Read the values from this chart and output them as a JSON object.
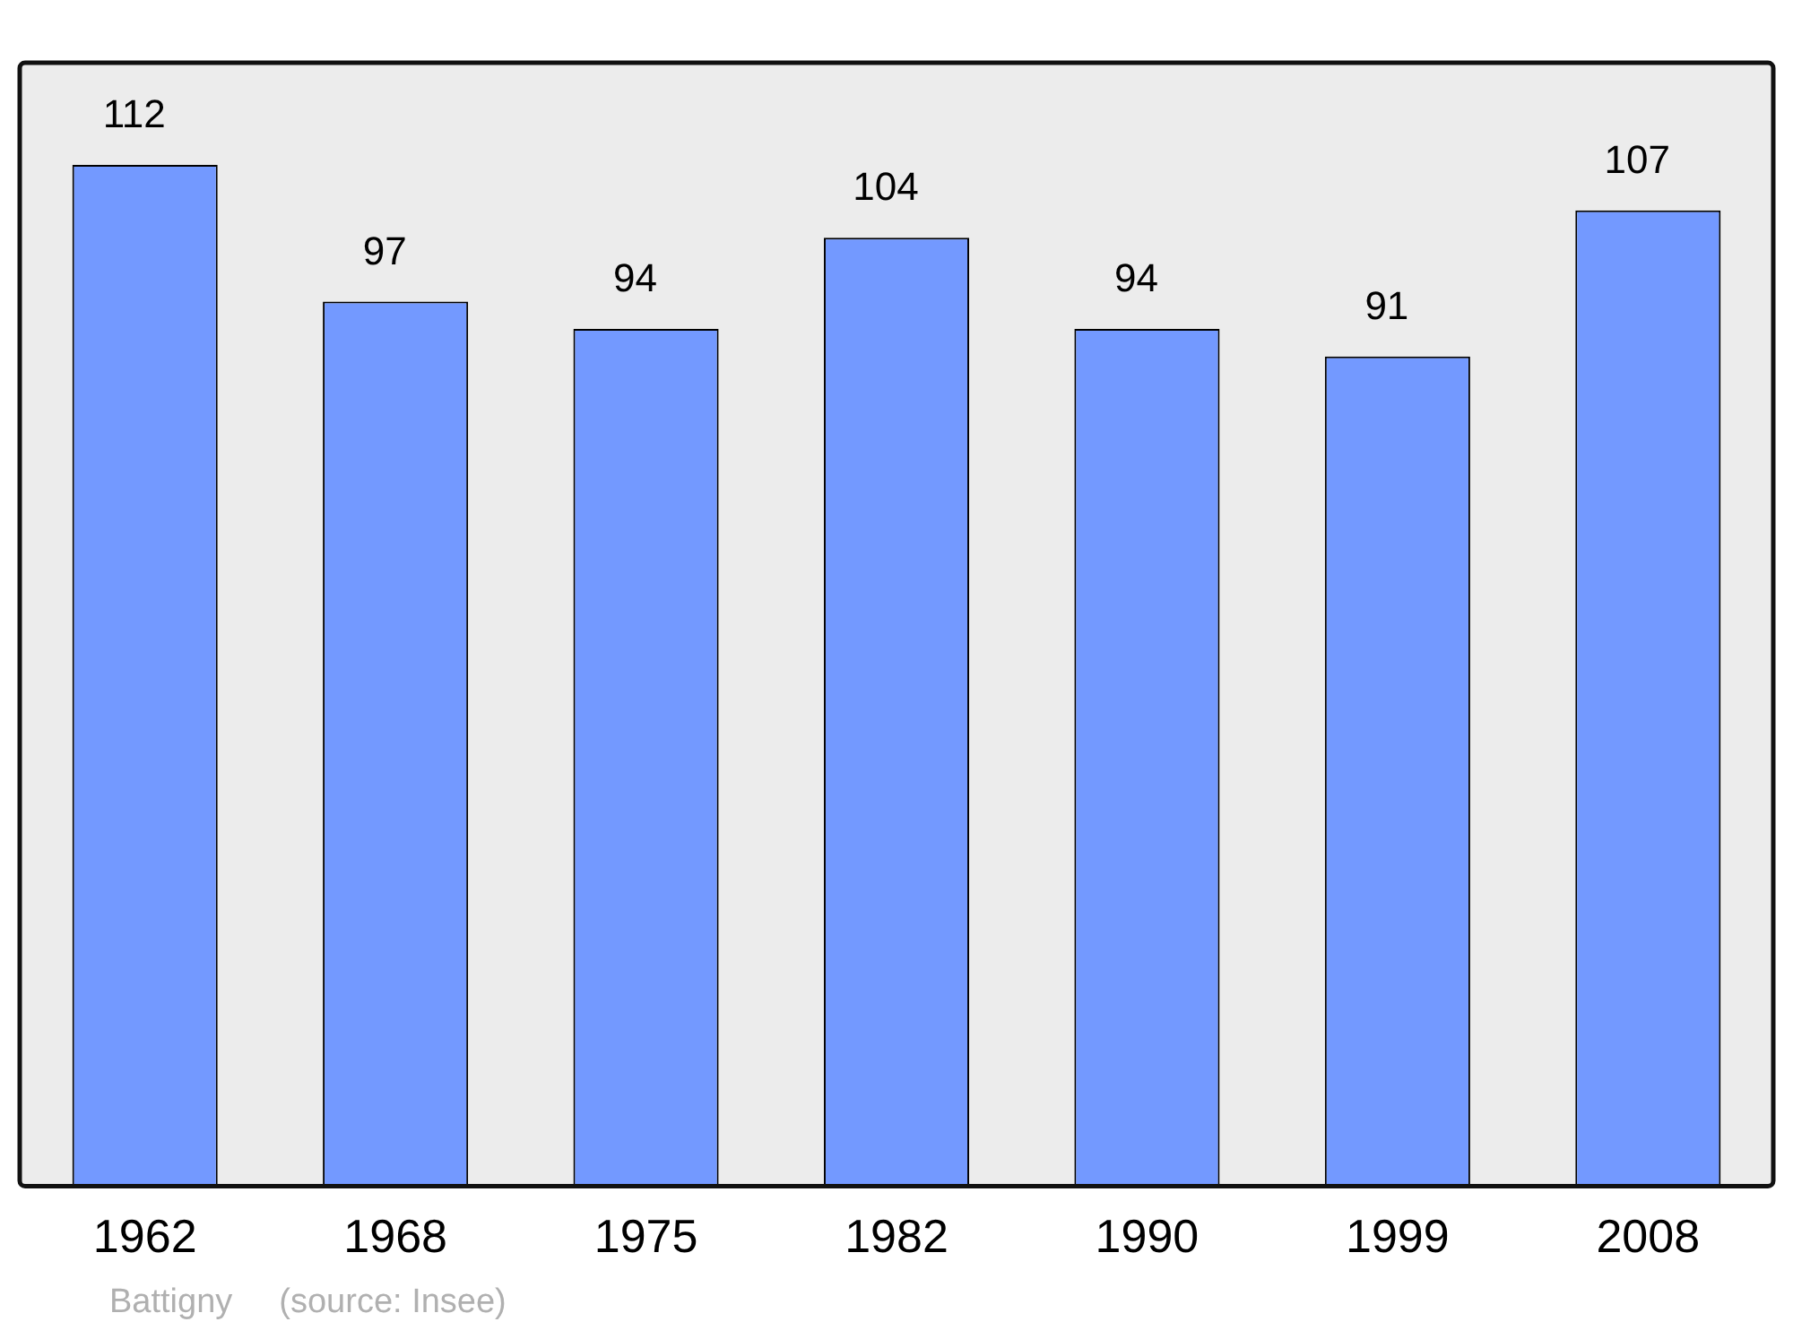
{
  "chart_data": {
    "type": "bar",
    "categories": [
      "1962",
      "1968",
      "1975",
      "1982",
      "1990",
      "1999",
      "2008"
    ],
    "values": [
      112,
      97,
      94,
      104,
      94,
      91,
      107
    ],
    "color": "#7399ff",
    "data_labels": true,
    "legend": false,
    "grid": false,
    "annotations": [
      "Battigny",
      "(source: Insee)"
    ]
  }
}
